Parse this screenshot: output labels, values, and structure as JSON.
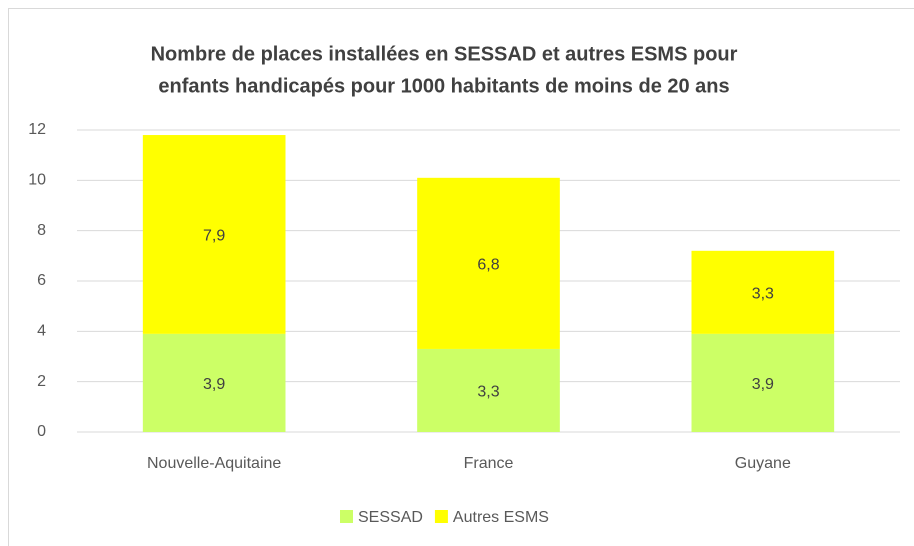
{
  "chart_data": {
    "type": "stacked_bar",
    "title": [
      "Nombre de places installées en SESSAD et autres ESMS pour",
      "enfants handicapés pour 1000 habitants de moins de 20 ans"
    ],
    "categories": [
      "Nouvelle-Aquitaine",
      "France",
      "Guyane"
    ],
    "series": [
      {
        "name": "SESSAD",
        "color": "#ccff66",
        "values": [
          3.9,
          3.3,
          3.9
        ],
        "value_labels": [
          "3,9",
          "3,3",
          "3,9"
        ]
      },
      {
        "name": "Autres ESMS",
        "color": "#ffff00",
        "values": [
          7.9,
          6.8,
          3.3
        ],
        "value_labels": [
          "7,9",
          "6,8",
          "3,3"
        ]
      }
    ],
    "ylim": [
      0,
      12
    ],
    "yticks": [
      0,
      2,
      4,
      6,
      8,
      10,
      12
    ],
    "grid": true,
    "legend": "bottom"
  }
}
